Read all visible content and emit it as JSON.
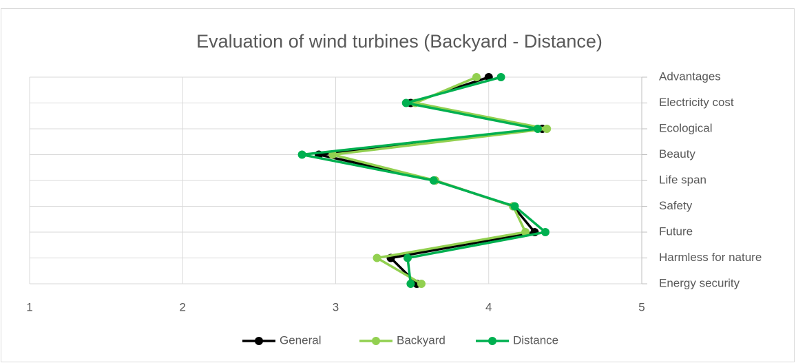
{
  "chart_data": {
    "type": "line",
    "orientation": "horizontal",
    "title": "Evaluation of wind turbines (Backyard - Distance)",
    "categories": [
      "Advantages",
      "Electricity cost",
      "Ecological",
      "Beauty",
      "Life span",
      "Safety",
      "Future",
      "Harmless for nature",
      "Energy security"
    ],
    "series": [
      {
        "name": "General",
        "color": "#000000",
        "values": [
          4.0,
          3.49,
          4.35,
          2.89,
          3.65,
          4.16,
          4.3,
          3.36,
          3.53
        ]
      },
      {
        "name": "Backyard",
        "color": "#92d050",
        "values": [
          3.92,
          3.52,
          4.38,
          2.98,
          3.65,
          4.16,
          4.24,
          3.27,
          3.56
        ]
      },
      {
        "name": "Distance",
        "color": "#00b050",
        "values": [
          4.08,
          3.46,
          4.32,
          2.78,
          3.64,
          4.17,
          4.37,
          3.47,
          3.49
        ]
      }
    ],
    "xlim": [
      1,
      5
    ],
    "xticks": [
      1,
      2,
      3,
      4,
      5
    ],
    "grid": true,
    "legend": "bottom"
  }
}
